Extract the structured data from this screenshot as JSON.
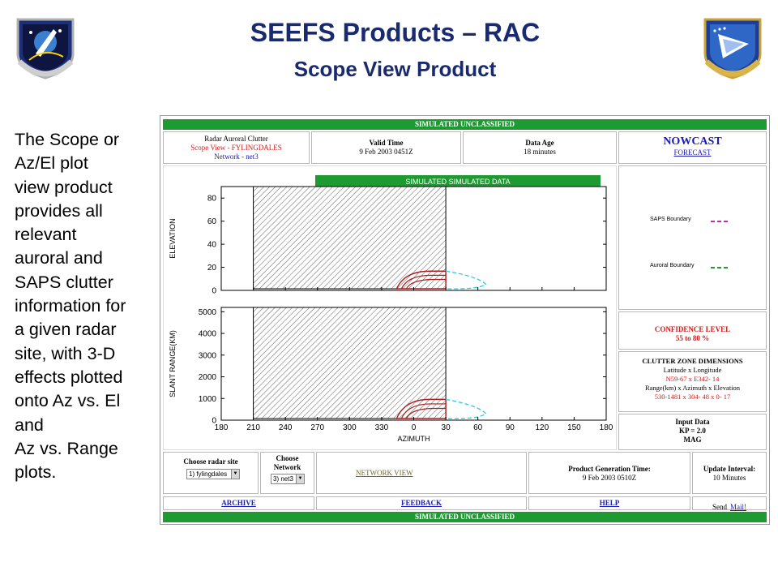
{
  "slide": {
    "title": "SEEFS Products – RAC",
    "subtitle": "Scope View Product",
    "description_lines": [
      "The Scope or",
      "Az/El plot",
      "view product",
      "provides all",
      "relevant",
      "auroral and",
      "SAPS clutter",
      "information for",
      "a given radar",
      "site, with 3-D",
      "effects plotted",
      "onto Az vs. El",
      "and",
      "Az vs. Range",
      "plots."
    ],
    "left_logo_icon": "space-missile-systems-center-emblem",
    "right_logo_icon": "air-force-research-laboratory-emblem"
  },
  "screenshot": {
    "top_banner": "SIMULATED UNCLASSIFIED",
    "bottom_banner": "SIMULATED UNCLASSIFIED",
    "header": {
      "product_title": "Radar Auroral Clutter",
      "product_view": "Scope View - FYLINGDALES",
      "product_network": "Network - net3",
      "valid_time_label": "Valid Time",
      "valid_time_value": "9 Feb 2003 0451Z",
      "data_age_label": "Data Age",
      "data_age_value": "18 minutes",
      "nowcast_label": "NOWCAST",
      "forecast_link": "FORECAST"
    },
    "plot_banner": "SIMULATED  SIMULATED  DATA",
    "legend": {
      "saps_label": "SAPS Boundary",
      "saps_color": "#d020c0",
      "auroral_label": "Auroral Boundary",
      "auroral_color": "#1f9a33"
    },
    "confidence": {
      "label": "CONFIDENCE LEVEL",
      "value": "55 to 80 %"
    },
    "clutter_zone": {
      "title": "CLUTTER ZONE DIMENSIONS",
      "latlon_label": "Latitude x Longitude",
      "latlon_value": "N59-67 x E342- 14",
      "range_label": "Range(km) x Azimuth x Elevation",
      "range_value": "530-1481 x 304- 48 x 0- 17"
    },
    "input_data": {
      "title": "Input Data",
      "kp": "KP = 2.0",
      "source": "MAG"
    },
    "controls": {
      "radar_site_label": "Choose radar site",
      "radar_site_value": "1) fylingdales",
      "network_label_1": "Choose",
      "network_label_2": "Network",
      "network_value": "3) net3",
      "network_view_link": "NETWORK VIEW",
      "generation_label": "Product Generation Time:",
      "generation_value": "9 Feb 2003 0510Z",
      "update_label": "Update Interval:",
      "update_value": "10 Minutes"
    },
    "footer": {
      "archive": "ARCHIVE",
      "feedback": "FEEDBACK",
      "help": "HELP",
      "send_text": "Send",
      "mail_link": "Mail!"
    }
  },
  "chart_data": [
    {
      "type": "line",
      "ylabel": "ELEVATION",
      "yticks": [
        0,
        20,
        40,
        60,
        80
      ],
      "ylim": [
        0,
        90
      ],
      "xlim": [
        180,
        540
      ],
      "hatched_x_range": [
        210,
        390
      ],
      "grid": false
    },
    {
      "type": "line",
      "ylabel": "SLANT RANGE(KM)",
      "xlabel": "AZIMUTH",
      "yticks": [
        0,
        1000,
        2000,
        3000,
        4000,
        5000
      ],
      "ylim": [
        0,
        5200
      ],
      "xticks": [
        "180",
        "210",
        "240",
        "270",
        "300",
        "330",
        "0",
        "30",
        "60",
        "90",
        "120",
        "150",
        "180"
      ],
      "xlim": [
        180,
        540
      ],
      "hatched_x_range": [
        210,
        390
      ],
      "grid": false
    }
  ]
}
